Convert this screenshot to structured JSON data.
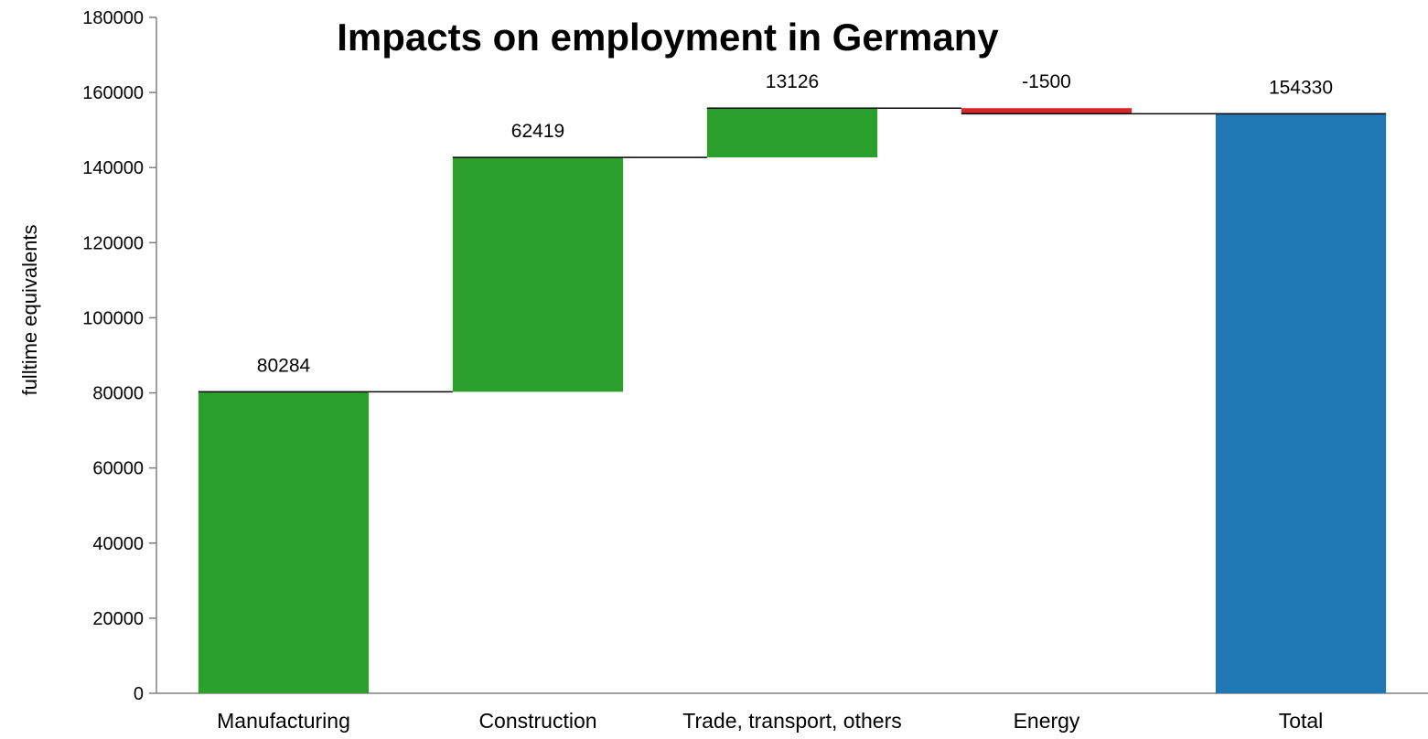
{
  "chart_data": {
    "type": "bar",
    "subtype": "waterfall",
    "title": "Impacts on employment in Germany",
    "xlabel": "",
    "ylabel": "fulltime equivalents",
    "ylim": [
      0,
      180000
    ],
    "yticks": [
      0,
      20000,
      40000,
      60000,
      80000,
      100000,
      120000,
      140000,
      160000,
      180000
    ],
    "grid": false,
    "legend": "none",
    "categories": [
      "Manufacturing",
      "Construction",
      "Trade, transport, others",
      "Energy",
      "Total"
    ],
    "values": [
      80284,
      62419,
      13126,
      -1500,
      154330
    ],
    "labels": [
      "80284",
      "62419",
      "13126",
      "-1500",
      "154330"
    ],
    "is_total": [
      false,
      false,
      false,
      false,
      true
    ],
    "colors": {
      "increase": "#2ca02c",
      "decrease": "#d62728",
      "total": "#1f77b4",
      "connector": "#000000",
      "axis": "#808080"
    }
  }
}
